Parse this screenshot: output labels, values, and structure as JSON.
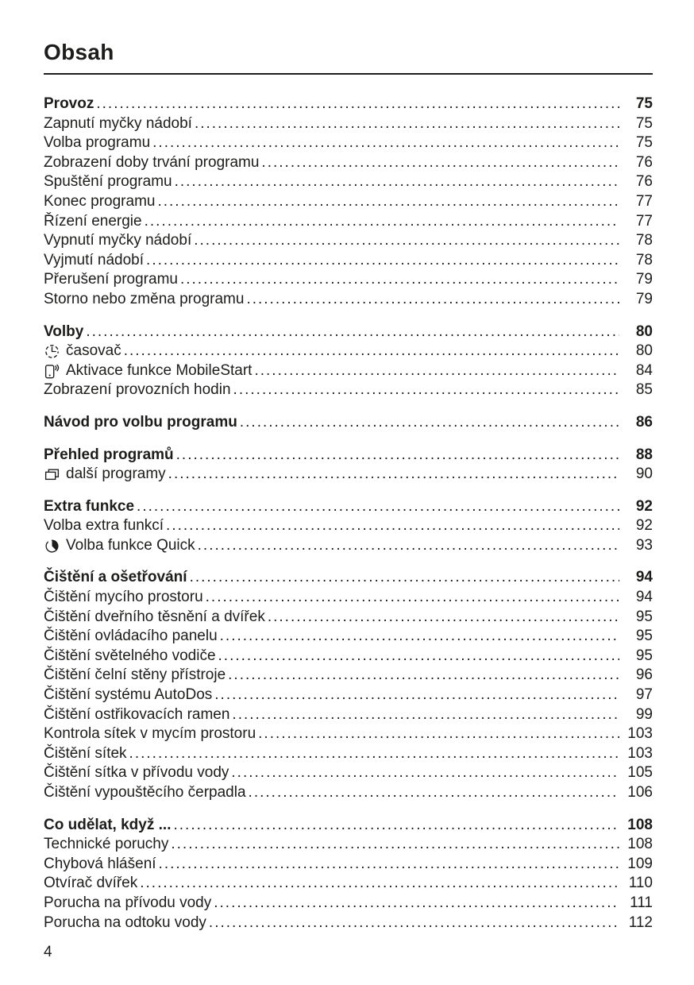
{
  "document": {
    "heading": "Obsah",
    "footer_page_number": "4"
  },
  "toc": {
    "sections": [
      {
        "entries": [
          {
            "label": "Provoz",
            "page": "75",
            "bold": true
          },
          {
            "label": "Zapnutí myčky nádobí",
            "page": "75"
          },
          {
            "label": "Volba programu",
            "page": "75"
          },
          {
            "label": "Zobrazení doby trvání programu",
            "page": "76"
          },
          {
            "label": "Spuštění programu",
            "page": "76"
          },
          {
            "label": "Konec programu",
            "page": "77"
          },
          {
            "label": "Řízení energie",
            "page": "77"
          },
          {
            "label": "Vypnutí myčky nádobí",
            "page": "78"
          },
          {
            "label": "Vyjmutí nádobí",
            "page": "78"
          },
          {
            "label": "Přerušení programu",
            "page": "79"
          },
          {
            "label": "Storno nebo změna programu",
            "page": "79"
          }
        ]
      },
      {
        "entries": [
          {
            "label": "Volby",
            "page": "80",
            "bold": true
          },
          {
            "label": "časovač",
            "page": "80",
            "icon": "timer-icon"
          },
          {
            "label": "Aktivace funkce MobileStart",
            "page": "84",
            "icon": "mobile-start-icon"
          },
          {
            "label": "Zobrazení provozních hodin",
            "page": "85"
          }
        ]
      },
      {
        "entries": [
          {
            "label": "Návod pro volbu programu",
            "page": "86",
            "bold": true
          }
        ]
      },
      {
        "entries": [
          {
            "label": "Přehled programů",
            "page": "88",
            "bold": true
          },
          {
            "label": "další programy",
            "page": "90",
            "icon": "more-programs-icon"
          }
        ]
      },
      {
        "entries": [
          {
            "label": "Extra funkce",
            "page": "92",
            "bold": true
          },
          {
            "label": "Volba extra funkcí",
            "page": "92"
          },
          {
            "label": "Volba funkce Quick",
            "page": "93",
            "icon": "quick-icon"
          }
        ]
      },
      {
        "entries": [
          {
            "label": "Čištění a ošetřování",
            "page": "94",
            "bold": true
          },
          {
            "label": "Čištění mycího prostoru",
            "page": "94"
          },
          {
            "label": "Čištění dveřního těsnění a dvířek",
            "page": "95"
          },
          {
            "label": "Čištění ovládacího panelu",
            "page": "95"
          },
          {
            "label": "Čištění světelného vodiče",
            "page": "95"
          },
          {
            "label": "Čištění čelní stěny přístroje",
            "page": "96"
          },
          {
            "label": "Čištění systému AutoDos",
            "page": "97"
          },
          {
            "label": "Čištění ostřikovacích ramen",
            "page": "99"
          },
          {
            "label": "Kontrola sítek v mycím prostoru",
            "page": "103"
          },
          {
            "label": "Čištění sítek",
            "page": "103"
          },
          {
            "label": "Čištění sítka v přívodu vody",
            "page": "105"
          },
          {
            "label": "Čištění vypouštěcího čerpadla",
            "page": "106"
          }
        ]
      },
      {
        "entries": [
          {
            "label": "Co udělat, když ...",
            "page": "108",
            "bold": true
          },
          {
            "label": "Technické poruchy",
            "page": "108"
          },
          {
            "label": "Chybová hlášení",
            "page": "109"
          },
          {
            "label": "Otvírač dvířek",
            "page": "110"
          },
          {
            "label": "Porucha na přívodu vody",
            "page": "111"
          },
          {
            "label": "Porucha na odtoku vody",
            "page": "112"
          }
        ]
      }
    ]
  }
}
